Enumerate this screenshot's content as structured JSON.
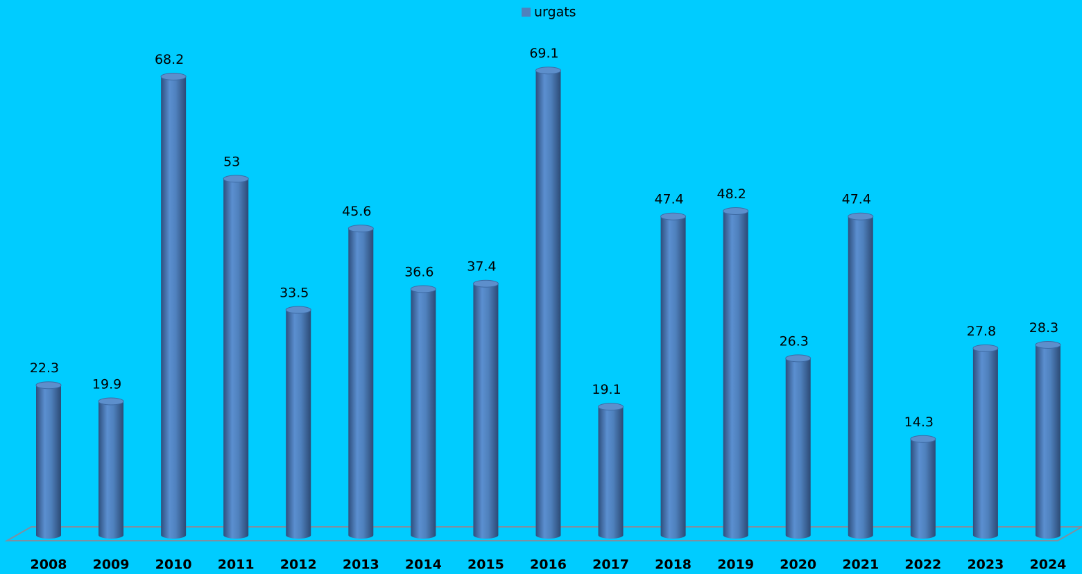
{
  "chart_data": {
    "type": "bar",
    "categories": [
      "2008",
      "2009",
      "2010",
      "2011",
      "2012",
      "2013",
      "2014",
      "2015",
      "2016",
      "2017",
      "2018",
      "2019",
      "2020",
      "2021",
      "2022",
      "2023",
      "2024"
    ],
    "series": [
      {
        "name": "urgats",
        "color": "#4f81bd",
        "values": [
          22.3,
          19.9,
          68.2,
          53,
          33.5,
          45.6,
          36.6,
          37.4,
          69.1,
          19.1,
          47.4,
          48.2,
          26.3,
          47.4,
          14.3,
          27.8,
          28.3
        ]
      }
    ],
    "legend": "top"
  }
}
